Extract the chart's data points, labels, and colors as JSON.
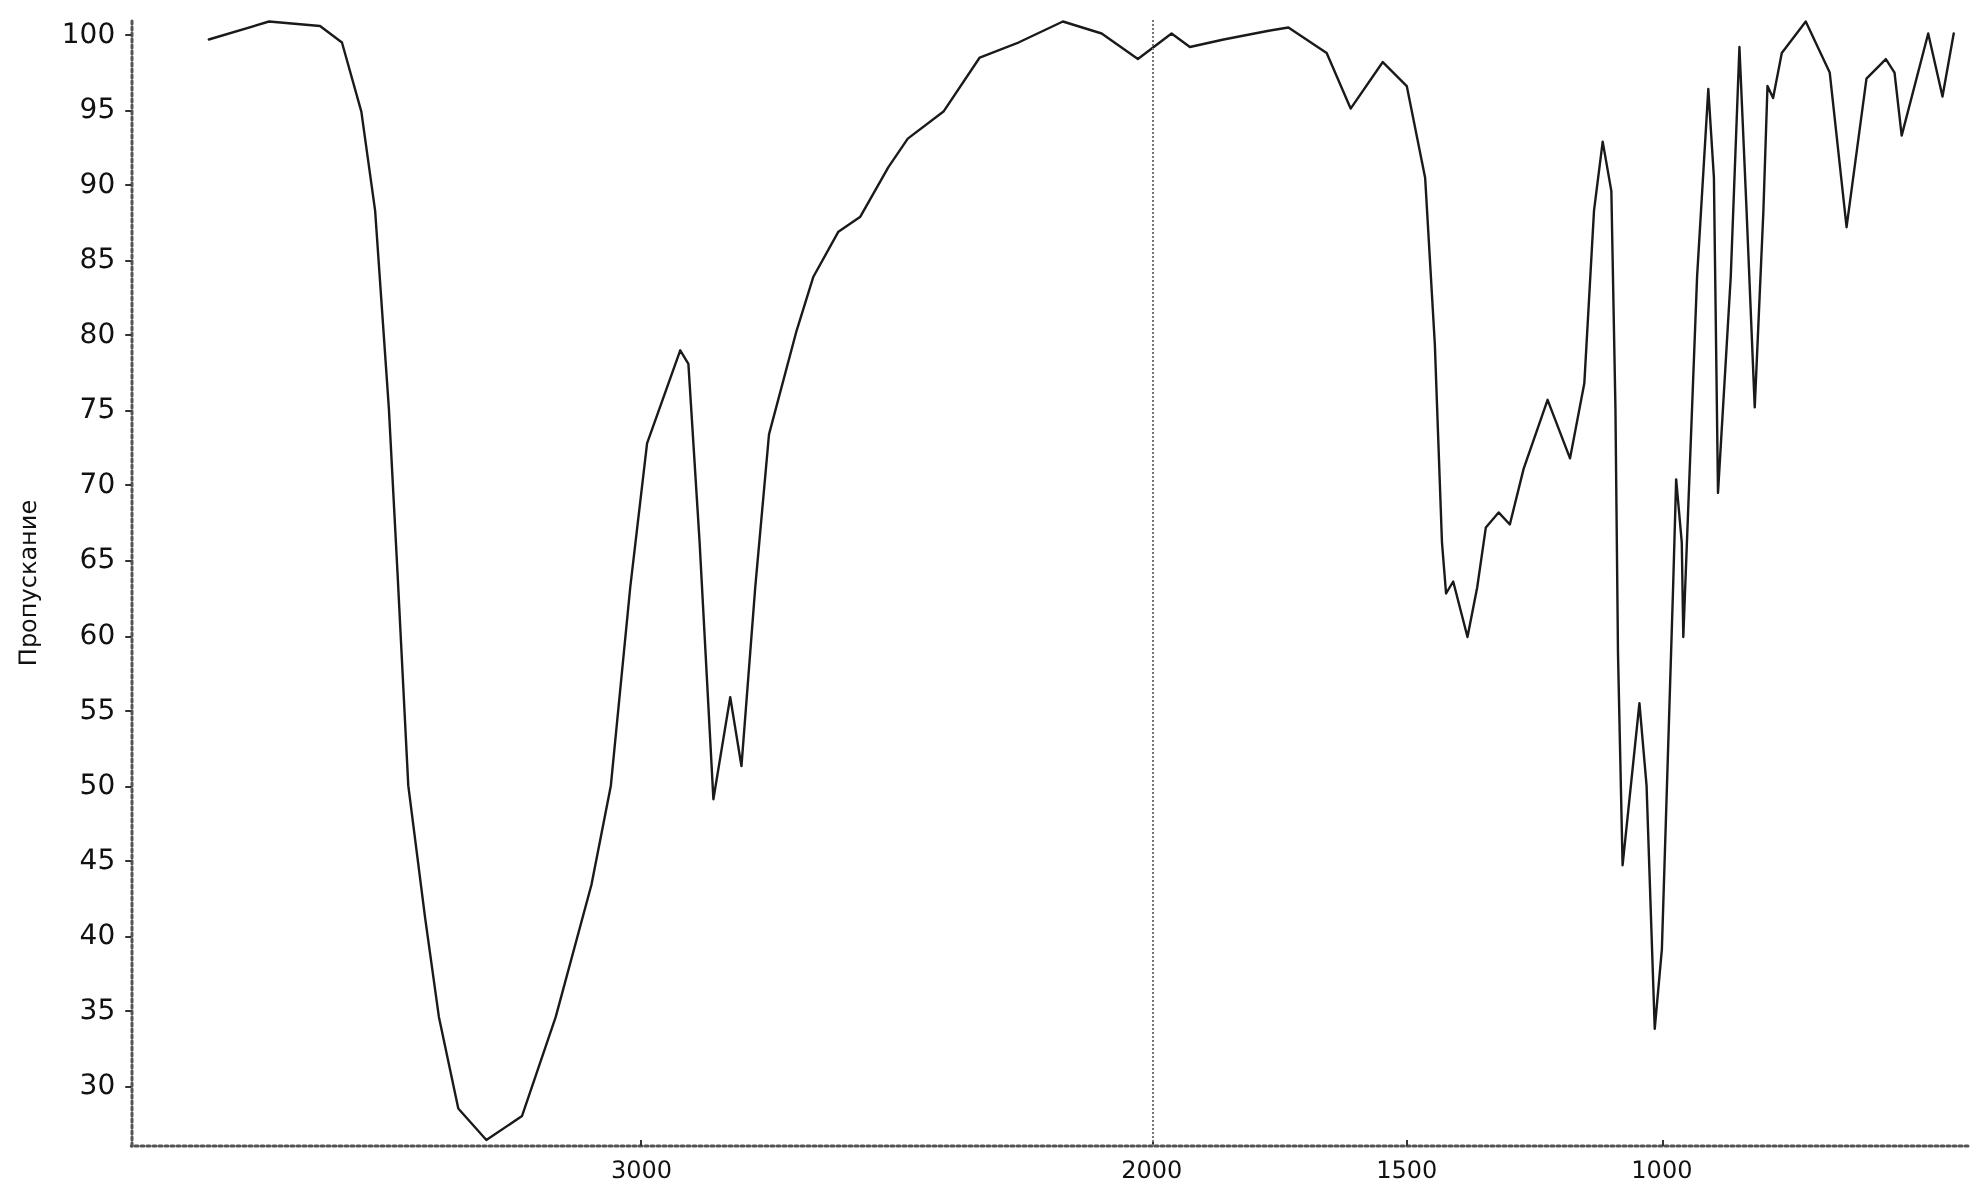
{
  "chart_data": {
    "type": "line",
    "ylabel": "Пропускание",
    "x": [
      3848,
      3730,
      3630,
      3587,
      3549,
      3522,
      3495,
      3478,
      3457,
      3424,
      3397,
      3359,
      3304,
      3234,
      3168,
      3098,
      3060,
      3022,
      2989,
      2924,
      2908,
      2886,
      2859,
      2826,
      2804,
      2777,
      2750,
      2696,
      2663,
      2614,
      2571,
      2516,
      2478,
      2408,
      2337,
      2261,
      2174,
      2098,
      2027,
      1961,
      1925,
      1859,
      1768,
      1732,
      1657,
      1610,
      1547,
      1500,
      1464,
      1445,
      1431,
      1423,
      1409,
      1381,
      1362,
      1345,
      1320,
      1298,
      1271,
      1224,
      1180,
      1152,
      1133,
      1116,
      1099,
      1091,
      1086,
      1077,
      1044,
      1030,
      1014,
      1000,
      986,
      978,
      972,
      961,
      958,
      931,
      909,
      898,
      890,
      865,
      848,
      834,
      818,
      801,
      793,
      782,
      765,
      718,
      671,
      638,
      599,
      561,
      544,
      530,
      478,
      450,
      428
    ],
    "series": [
      {
        "color": "#1a1a1a",
        "values": [
          99.7,
          100.9,
          100.6,
          99.5,
          94.9,
          88.3,
          75.1,
          64.1,
          50.0,
          41.2,
          34.6,
          28.5,
          26.4,
          28.0,
          34.6,
          43.4,
          50.0,
          63.2,
          72.8,
          79.0,
          78.1,
          66.2,
          49.1,
          55.9,
          51.3,
          63.2,
          73.4,
          80.3,
          83.9,
          86.9,
          87.9,
          91.2,
          93.1,
          94.9,
          98.5,
          99.5,
          100.9,
          100.1,
          98.4,
          100.1,
          99.2,
          99.7,
          100.3,
          100.5,
          98.8,
          95.1,
          98.2,
          96.6,
          90.5,
          79.4,
          66.2,
          62.8,
          63.6,
          59.9,
          63.2,
          67.2,
          68.2,
          67.4,
          71.1,
          75.7,
          71.8,
          76.8,
          88.3,
          92.9,
          89.6,
          75.1,
          58.8,
          44.7,
          55.5,
          50.0,
          33.8,
          39.1,
          54.4,
          63.2,
          70.4,
          66.2,
          59.9,
          83.9,
          96.4,
          90.5,
          69.5,
          83.9,
          99.2,
          88.3,
          75.2,
          88.3,
          96.6,
          95.8,
          98.8,
          100.9,
          97.5,
          87.2,
          97.1,
          98.4,
          97.5,
          93.3,
          100.1,
          95.9,
          100.1
        ]
      }
    ],
    "xlim": [
      4000,
      400
    ],
    "xticks": [
      3000,
      2000,
      1500,
      1000
    ],
    "ylim": [
      26,
      101
    ],
    "yticks": [
      30,
      35,
      40,
      45,
      50,
      55,
      60,
      65,
      70,
      75,
      80,
      85,
      90,
      95,
      100
    ],
    "grid": false,
    "marker": "none",
    "line_style": "solid",
    "ref_lines": [
      {
        "axis": "x",
        "value": 2000,
        "label": null,
        "color": "#777777",
        "line_style": "dotted"
      }
    ]
  }
}
